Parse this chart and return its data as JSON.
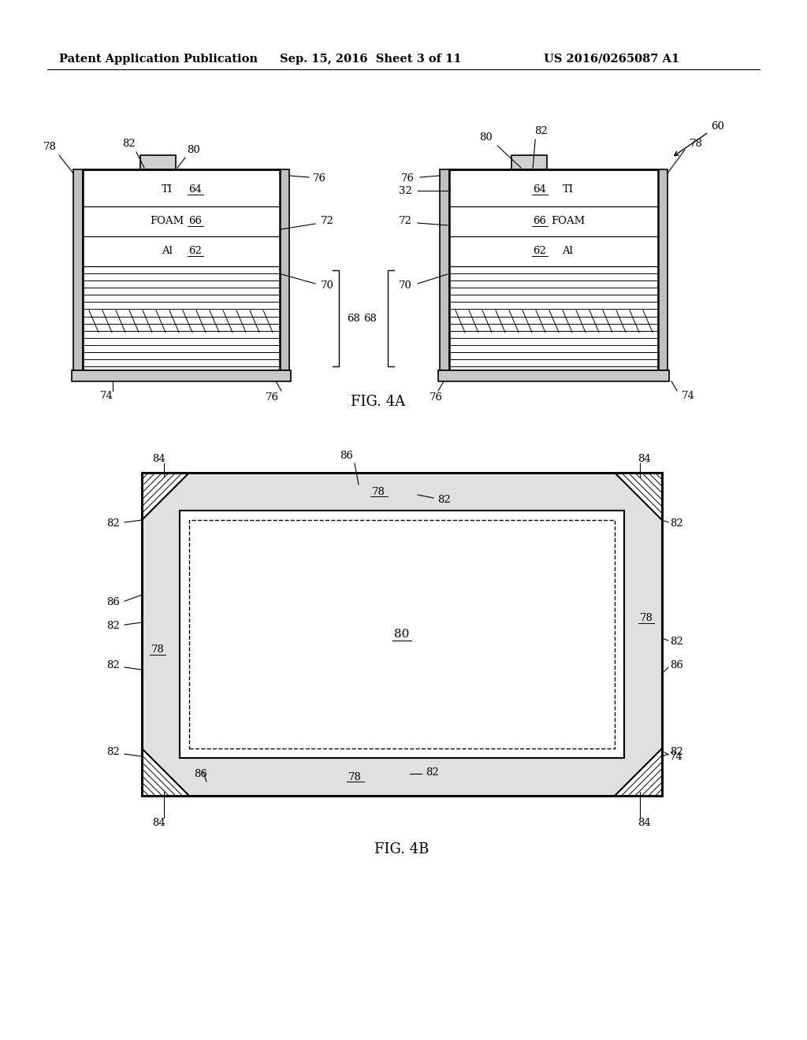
{
  "bg_color": "#ffffff",
  "header_left": "Patent Application Publication",
  "header_mid": "Sep. 15, 2016  Sheet 3 of 11",
  "header_right": "US 2016/0265087 A1",
  "fig4a_label": "FIG. 4A",
  "fig4b_label": "FIG. 4B"
}
